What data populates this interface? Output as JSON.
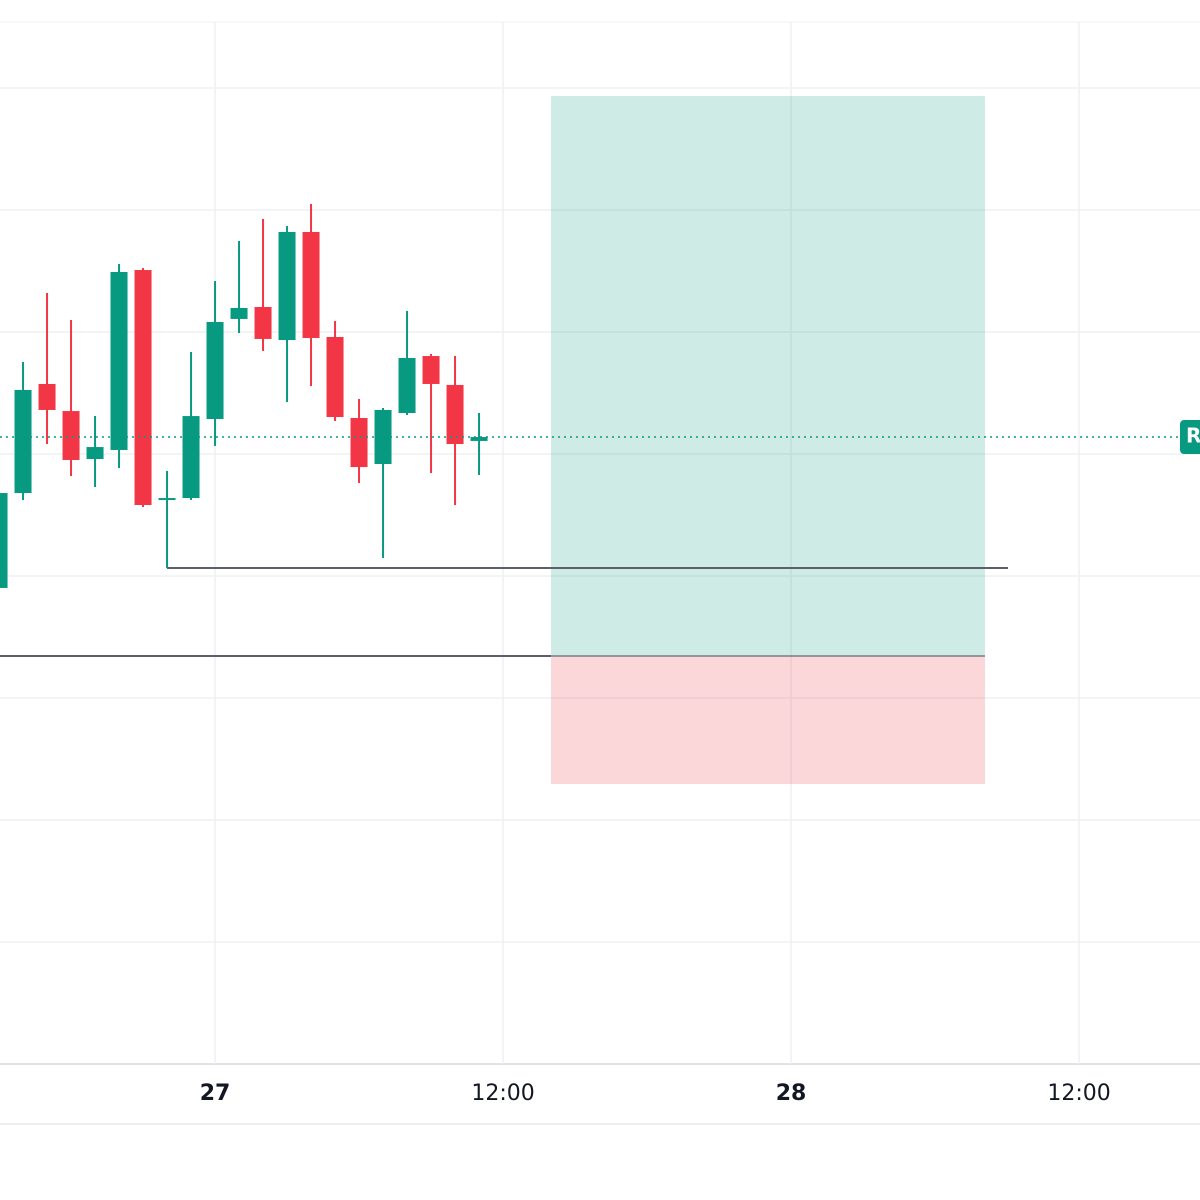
{
  "chart_data": {
    "type": "candlestick",
    "x": [
      -9,
      -8,
      -7,
      -6,
      -5,
      -4,
      -3,
      -2,
      -1,
      0,
      1,
      2,
      3,
      4,
      5,
      6,
      7,
      8,
      9,
      10,
      11
    ],
    "open": [
      39.02,
      46.8,
      55.74,
      53.52,
      49.59,
      50.33,
      65.08,
      46.31,
      46.39,
      52.87,
      61.07,
      62.05,
      59.34,
      68.2,
      59.59,
      52.95,
      49.18,
      53.36,
      58.03,
      55.66,
      51.07
    ],
    "high": [
      47.05,
      57.54,
      63.2,
      60.98,
      53.11,
      65.57,
      65.25,
      48.61,
      58.36,
      64.18,
      67.46,
      69.26,
      68.69,
      70.49,
      60.9,
      54.51,
      53.77,
      61.72,
      58.2,
      58.03,
      53.36
    ],
    "low": [
      38.85,
      46.23,
      50.82,
      48.2,
      47.3,
      48.85,
      45.66,
      40.66,
      46.23,
      50.66,
      59.92,
      58.44,
      54.26,
      55.57,
      52.7,
      47.62,
      41.48,
      53.2,
      48.44,
      45.82,
      48.28
    ],
    "close": [
      46.8,
      55.25,
      53.61,
      49.51,
      50.57,
      64.92,
      45.82,
      46.39,
      53.11,
      60.82,
      61.97,
      59.43,
      68.2,
      59.51,
      53.03,
      48.93,
      53.61,
      57.87,
      55.74,
      50.82,
      51.39
    ],
    "up_color": "#089981",
    "down_color": "#f23645",
    "xlim": [
      -8.96,
      41.04
    ],
    "xticks": [
      {
        "value": 0,
        "label": "27"
      },
      {
        "value": 12,
        "label": "12:00"
      },
      {
        "value": 24,
        "label": "28"
      },
      {
        "value": 36,
        "label": "12:00"
      }
    ],
    "ylim": [
      0,
      85.41
    ],
    "yticks": [
      10,
      20,
      30,
      40,
      50,
      60,
      70,
      80
    ],
    "grid": true,
    "lines": [
      {
        "x": [
          -8.96,
          14
        ],
        "y": 33.44
      },
      {
        "x": [
          -2,
          33.04
        ],
        "y": 40.66
      }
    ],
    "position": {
      "x": [
        14,
        32.08
      ],
      "entry": 33.44,
      "target": 79.34,
      "stop": 22.95
    },
    "price_label": "R"
  }
}
